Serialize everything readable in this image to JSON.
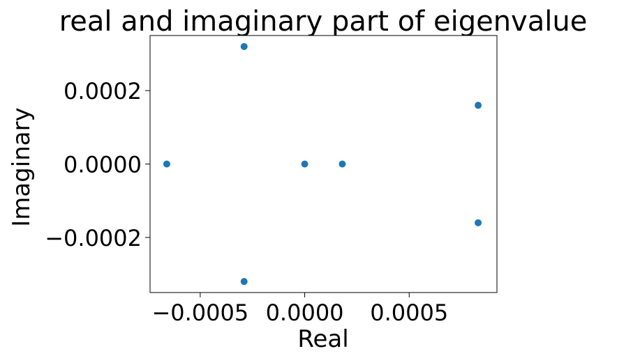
{
  "chart_data": {
    "type": "scatter",
    "title": "real and imaginary part of eigenvalue",
    "xlabel": "Real",
    "ylabel": "Imaginary",
    "xlim": [
      -0.00074,
      0.00092
    ],
    "ylim": [
      -0.00035,
      0.00035
    ],
    "xticks": [
      -0.0005,
      0.0,
      0.0005
    ],
    "xtick_labels": [
      "−0.0005",
      "0.0000",
      "0.0005"
    ],
    "yticks": [
      -0.0002,
      0.0,
      0.0002
    ],
    "ytick_labels": [
      "−0.0002",
      "0.0000",
      "0.0002"
    ],
    "grid": false,
    "marker_color": "#1f77b4",
    "points": [
      {
        "x": -0.00066,
        "y": 0.0
      },
      {
        "x": -0.00029,
        "y": 0.00032
      },
      {
        "x": -0.00029,
        "y": -0.00032
      },
      {
        "x": 0.0,
        "y": 0.0
      },
      {
        "x": 0.00018,
        "y": 0.0
      },
      {
        "x": 0.00083,
        "y": 0.00016
      },
      {
        "x": 0.00083,
        "y": -0.00016
      }
    ]
  }
}
